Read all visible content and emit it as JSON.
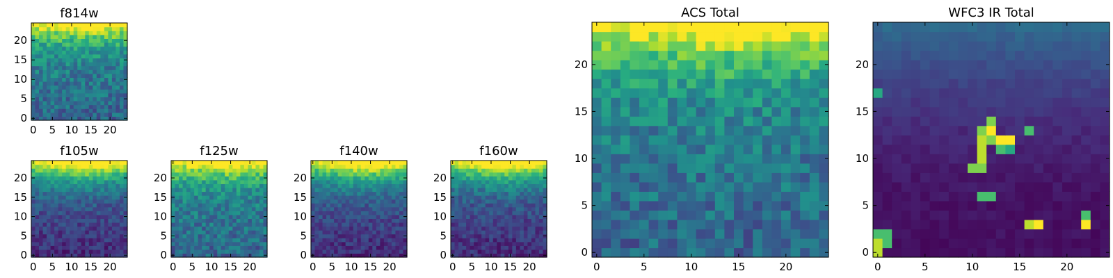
{
  "chart_data": [
    {
      "type": "heatmap",
      "title": "f814w",
      "grid_size": 25,
      "colormap": "viridis",
      "xticks": [
        0,
        5,
        10,
        15,
        20
      ],
      "yticks": [
        0,
        5,
        10,
        15,
        20
      ],
      "xlim": [
        -0.5,
        24.5
      ],
      "ylim": [
        -0.5,
        24.5
      ],
      "pattern": "top-gradient"
    },
    {
      "type": "heatmap",
      "title": "ACS Total",
      "grid_size": 25,
      "colormap": "viridis",
      "xticks": [
        0,
        5,
        10,
        15,
        20
      ],
      "yticks": [
        0,
        5,
        10,
        15,
        20
      ],
      "xlim": [
        -0.5,
        24.5
      ],
      "ylim": [
        -0.5,
        24.5
      ],
      "pattern": "top-gradient"
    },
    {
      "type": "heatmap",
      "title": "WFC3 IR Total",
      "grid_size": 25,
      "colormap": "viridis",
      "xticks": [
        0,
        5,
        10,
        15,
        20
      ],
      "yticks": [
        0,
        5,
        10,
        15,
        20
      ],
      "xlim": [
        -0.5,
        24.5
      ],
      "ylim": [
        -0.5,
        24.5
      ],
      "pattern": "dark-with-hotspots",
      "hotspots": [
        {
          "x": 0,
          "y": 0,
          "value": 0.9
        },
        {
          "x": 0,
          "y": 1,
          "value": 0.9
        },
        {
          "x": 1,
          "y": 1,
          "value": 0.7
        },
        {
          "x": 1,
          "y": 2,
          "value": 0.7
        },
        {
          "x": 0,
          "y": 2,
          "value": 0.7
        },
        {
          "x": 0,
          "y": 17,
          "value": 0.6
        },
        {
          "x": 10,
          "y": 9,
          "value": 0.8
        },
        {
          "x": 11,
          "y": 9,
          "value": 0.8
        },
        {
          "x": 11,
          "y": 10,
          "value": 0.9
        },
        {
          "x": 11,
          "y": 11,
          "value": 0.9
        },
        {
          "x": 11,
          "y": 12,
          "value": 0.9
        },
        {
          "x": 11,
          "y": 13,
          "value": 0.8
        },
        {
          "x": 12,
          "y": 13,
          "value": 1.0
        },
        {
          "x": 12,
          "y": 14,
          "value": 0.8
        },
        {
          "x": 12,
          "y": 12,
          "value": 0.8
        },
        {
          "x": 13,
          "y": 12,
          "value": 1.0
        },
        {
          "x": 14,
          "y": 12,
          "value": 1.0
        },
        {
          "x": 13,
          "y": 11,
          "value": 0.7
        },
        {
          "x": 14,
          "y": 11,
          "value": 0.6
        },
        {
          "x": 16,
          "y": 13,
          "value": 0.7
        },
        {
          "x": 11,
          "y": 6,
          "value": 0.7
        },
        {
          "x": 12,
          "y": 6,
          "value": 0.7
        },
        {
          "x": 16,
          "y": 3,
          "value": 0.9
        },
        {
          "x": 17,
          "y": 3,
          "value": 1.0
        },
        {
          "x": 22,
          "y": 3,
          "value": 1.0
        },
        {
          "x": 22,
          "y": 4,
          "value": 0.7
        }
      ]
    },
    {
      "type": "heatmap",
      "title": "f105w",
      "grid_size": 25,
      "colormap": "viridis",
      "xticks": [
        0,
        5,
        10,
        15,
        20
      ],
      "yticks": [
        0,
        5,
        10,
        15,
        20
      ],
      "xlim": [
        -0.5,
        24.5
      ],
      "ylim": [
        -0.5,
        24.5
      ],
      "pattern": "top-gradient-dark"
    },
    {
      "type": "heatmap",
      "title": "f125w",
      "grid_size": 25,
      "colormap": "viridis",
      "xticks": [
        0,
        5,
        10,
        15,
        20
      ],
      "yticks": [
        0,
        5,
        10,
        15,
        20
      ],
      "xlim": [
        -0.5,
        24.5
      ],
      "ylim": [
        -0.5,
        24.5
      ],
      "pattern": "top-gradient"
    },
    {
      "type": "heatmap",
      "title": "f140w",
      "grid_size": 25,
      "colormap": "viridis",
      "xticks": [
        0,
        5,
        10,
        15,
        20
      ],
      "yticks": [
        0,
        5,
        10,
        15,
        20
      ],
      "xlim": [
        -0.5,
        24.5
      ],
      "ylim": [
        -0.5,
        24.5
      ],
      "pattern": "top-gradient-dark"
    },
    {
      "type": "heatmap",
      "title": "f160w",
      "grid_size": 25,
      "colormap": "viridis",
      "xticks": [
        0,
        5,
        10,
        15,
        20
      ],
      "yticks": [
        0,
        5,
        10,
        15,
        20
      ],
      "xlim": [
        -0.5,
        24.5
      ],
      "ylim": [
        -0.5,
        24.5
      ],
      "pattern": "top-gradient-dark"
    }
  ],
  "colormap_stops": [
    "#440154",
    "#472d7b",
    "#3b528b",
    "#2c728e",
    "#21918c",
    "#28ae80",
    "#5ec962",
    "#addc30",
    "#fde725"
  ]
}
